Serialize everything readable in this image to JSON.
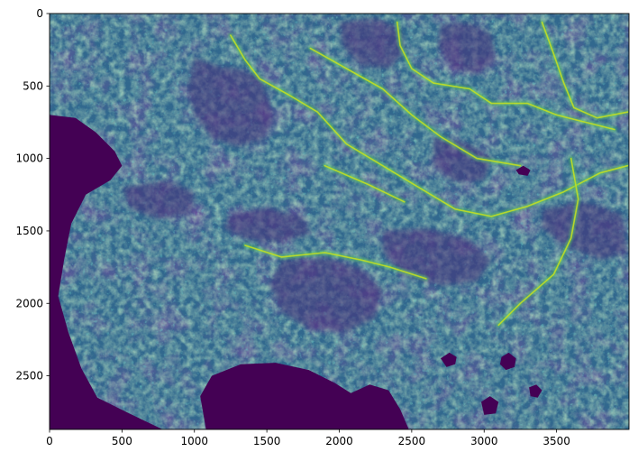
{
  "chart_data": {
    "type": "heatmap",
    "title": "",
    "xlabel": "",
    "ylabel": "",
    "xlim": [
      0,
      4000
    ],
    "ylim": [
      2870,
      0
    ],
    "x_ticks": [
      {
        "value": 0,
        "label": "0"
      },
      {
        "value": 500,
        "label": "500"
      },
      {
        "value": 1000,
        "label": "1000"
      },
      {
        "value": 1500,
        "label": "1500"
      },
      {
        "value": 2000,
        "label": "2000"
      },
      {
        "value": 2500,
        "label": "2500"
      },
      {
        "value": 3000,
        "label": "3000"
      },
      {
        "value": 3500,
        "label": "3500"
      }
    ],
    "y_ticks": [
      {
        "value": 0,
        "label": "0"
      },
      {
        "value": 500,
        "label": "500"
      },
      {
        "value": 1000,
        "label": "1000"
      },
      {
        "value": 1500,
        "label": "1500"
      },
      {
        "value": 2000,
        "label": "2000"
      },
      {
        "value": 2500,
        "label": "2500"
      }
    ],
    "colormap": "viridis",
    "colorbar": false,
    "grid": false,
    "water_color": "#440154",
    "water_bodies": [
      {
        "points": [
          [
            0,
            700
          ],
          [
            180,
            720
          ],
          [
            320,
            820
          ],
          [
            450,
            950
          ],
          [
            500,
            1050
          ],
          [
            420,
            1150
          ],
          [
            250,
            1250
          ],
          [
            150,
            1450
          ],
          [
            100,
            1700
          ],
          [
            60,
            1950
          ],
          [
            130,
            2200
          ],
          [
            220,
            2450
          ],
          [
            330,
            2650
          ],
          [
            550,
            2760
          ],
          [
            780,
            2870
          ],
          [
            0,
            2870
          ]
        ]
      },
      {
        "points": [
          [
            1080,
            2870
          ],
          [
            1040,
            2640
          ],
          [
            1120,
            2500
          ],
          [
            1320,
            2420
          ],
          [
            1560,
            2410
          ],
          [
            1790,
            2460
          ],
          [
            1970,
            2550
          ],
          [
            2080,
            2620
          ],
          [
            2210,
            2560
          ],
          [
            2340,
            2600
          ],
          [
            2420,
            2730
          ],
          [
            2480,
            2870
          ]
        ]
      },
      {
        "points": [
          [
            3220,
            1080
          ],
          [
            3270,
            1050
          ],
          [
            3320,
            1080
          ],
          [
            3300,
            1120
          ],
          [
            3240,
            1110
          ]
        ]
      },
      {
        "points": [
          [
            2700,
            2380
          ],
          [
            2760,
            2340
          ],
          [
            2810,
            2370
          ],
          [
            2800,
            2420
          ],
          [
            2740,
            2440
          ]
        ]
      },
      {
        "points": [
          [
            3120,
            2370
          ],
          [
            3170,
            2340
          ],
          [
            3220,
            2380
          ],
          [
            3210,
            2440
          ],
          [
            3150,
            2460
          ],
          [
            3110,
            2420
          ]
        ]
      },
      {
        "points": [
          [
            2980,
            2680
          ],
          [
            3040,
            2640
          ],
          [
            3100,
            2680
          ],
          [
            3080,
            2760
          ],
          [
            3000,
            2770
          ]
        ]
      },
      {
        "points": [
          [
            3310,
            2580
          ],
          [
            3360,
            2560
          ],
          [
            3400,
            2600
          ],
          [
            3370,
            2650
          ],
          [
            3320,
            2640
          ]
        ]
      }
    ],
    "high_ridges": [
      {
        "points": [
          [
            1250,
            150
          ],
          [
            1350,
            320
          ],
          [
            1450,
            450
          ],
          [
            1650,
            560
          ],
          [
            1850,
            680
          ],
          [
            2050,
            900
          ],
          [
            2300,
            1050
          ],
          [
            2550,
            1200
          ],
          [
            2800,
            1350
          ],
          [
            3050,
            1400
          ],
          [
            3300,
            1330
          ],
          [
            3550,
            1230
          ],
          [
            3800,
            1100
          ],
          [
            3990,
            1050
          ]
        ]
      },
      {
        "points": [
          [
            2400,
            60
          ],
          [
            2420,
            220
          ],
          [
            2500,
            380
          ],
          [
            2650,
            480
          ],
          [
            2900,
            520
          ],
          [
            3050,
            620
          ],
          [
            3300,
            620
          ],
          [
            3500,
            700
          ],
          [
            3700,
            750
          ],
          [
            3900,
            800
          ]
        ]
      },
      {
        "points": [
          [
            1800,
            240
          ],
          [
            2050,
            380
          ],
          [
            2300,
            520
          ],
          [
            2500,
            700
          ],
          [
            2700,
            850
          ],
          [
            2950,
            1000
          ],
          [
            3250,
            1050
          ]
        ]
      },
      {
        "points": [
          [
            3400,
            60
          ],
          [
            3470,
            250
          ],
          [
            3550,
            480
          ],
          [
            3620,
            650
          ],
          [
            3780,
            720
          ],
          [
            3990,
            680
          ]
        ]
      },
      {
        "points": [
          [
            3600,
            1000
          ],
          [
            3650,
            1280
          ],
          [
            3600,
            1550
          ],
          [
            3480,
            1800
          ],
          [
            3250,
            2000
          ],
          [
            3100,
            2150
          ]
        ]
      },
      {
        "points": [
          [
            1350,
            1600
          ],
          [
            1600,
            1680
          ],
          [
            1900,
            1650
          ],
          [
            2150,
            1700
          ],
          [
            2350,
            1750
          ],
          [
            2600,
            1830
          ]
        ]
      },
      {
        "points": [
          [
            1900,
            1050
          ],
          [
            2200,
            1180
          ],
          [
            2450,
            1300
          ]
        ]
      }
    ],
    "low_patches": [
      {
        "points": [
          [
            1000,
            300
          ],
          [
            1150,
            360
          ],
          [
            1300,
            380
          ],
          [
            1450,
            430
          ],
          [
            1500,
            560
          ],
          [
            1550,
            720
          ],
          [
            1480,
            870
          ],
          [
            1300,
            920
          ],
          [
            1120,
            860
          ],
          [
            1000,
            700
          ],
          [
            950,
            520
          ]
        ]
      },
      {
        "points": [
          [
            2000,
            60
          ],
          [
            2250,
            30
          ],
          [
            2420,
            100
          ],
          [
            2450,
            260
          ],
          [
            2350,
            380
          ],
          [
            2150,
            360
          ],
          [
            2020,
            220
          ]
        ]
      },
      {
        "points": [
          [
            2700,
            80
          ],
          [
            2900,
            60
          ],
          [
            3050,
            140
          ],
          [
            3080,
            320
          ],
          [
            2950,
            420
          ],
          [
            2780,
            380
          ],
          [
            2680,
            230
          ]
        ]
      },
      {
        "points": [
          [
            2650,
            850
          ],
          [
            2900,
            900
          ],
          [
            3050,
            1000
          ],
          [
            3000,
            1150
          ],
          [
            2800,
            1170
          ],
          [
            2650,
            1050
          ]
        ]
      },
      {
        "points": [
          [
            1250,
            1380
          ],
          [
            1500,
            1340
          ],
          [
            1750,
            1400
          ],
          [
            1800,
            1520
          ],
          [
            1600,
            1580
          ],
          [
            1350,
            1560
          ],
          [
            1200,
            1480
          ]
        ]
      },
      {
        "points": [
          [
            1600,
            1700
          ],
          [
            1900,
            1680
          ],
          [
            2150,
            1760
          ],
          [
            2300,
            1900
          ],
          [
            2250,
            2100
          ],
          [
            2050,
            2200
          ],
          [
            1800,
            2180
          ],
          [
            1600,
            2060
          ],
          [
            1520,
            1870
          ]
        ]
      },
      {
        "points": [
          [
            2300,
            1500
          ],
          [
            2600,
            1480
          ],
          [
            2900,
            1560
          ],
          [
            3050,
            1700
          ],
          [
            2950,
            1850
          ],
          [
            2700,
            1880
          ],
          [
            2450,
            1800
          ],
          [
            2300,
            1650
          ]
        ]
      },
      {
        "points": [
          [
            3400,
            1350
          ],
          [
            3700,
            1300
          ],
          [
            3950,
            1380
          ],
          [
            3990,
            1650
          ],
          [
            3800,
            1700
          ],
          [
            3550,
            1600
          ],
          [
            3400,
            1480
          ]
        ]
      },
      {
        "points": [
          [
            500,
            1200
          ],
          [
            800,
            1150
          ],
          [
            1000,
            1230
          ],
          [
            980,
            1380
          ],
          [
            750,
            1420
          ],
          [
            560,
            1350
          ]
        ]
      }
    ]
  }
}
